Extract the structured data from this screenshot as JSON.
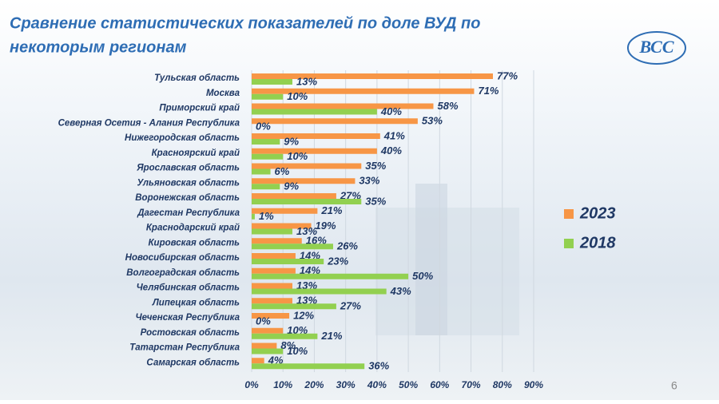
{
  "chart_data": {
    "type": "hbar",
    "title": [
      "Сравнение статистических показателей по доле ВУД по",
      "некоторым регионам"
    ],
    "logo": "ВСС",
    "page_number": "6",
    "categories": [
      "Тульская область",
      "Москва",
      "Приморский край",
      "Северная Осетия - Алания Республика",
      "Нижегородская область",
      "Красноярский край",
      "Ярославская область",
      "Ульяновская область",
      "Воронежская область",
      "Дагестан Республика",
      "Краснодарский край",
      "Кировская область",
      "Новосибирская область",
      "Волгоградская область",
      "Челябинская область",
      "Липецкая область",
      "Чеченская Республика",
      "Ростовская область",
      "Татарстан Республика",
      "Самарская область"
    ],
    "series": [
      {
        "name": "2023",
        "color": "#f79646",
        "values": [
          77,
          71,
          58,
          53,
          41,
          40,
          35,
          33,
          27,
          21,
          19,
          16,
          14,
          14,
          13,
          13,
          12,
          10,
          8,
          4
        ],
        "value_labels": [
          "77%",
          "71%",
          "58%",
          "53%",
          "41%",
          "40%",
          "35%",
          "33%",
          "27%",
          "21%",
          "19%",
          "16%",
          "14%",
          "14%",
          "13%",
          "13%",
          "12%",
          "10%",
          "8%",
          "4%"
        ]
      },
      {
        "name": "2018",
        "color": "#92d050",
        "values": [
          13,
          10,
          40,
          0,
          9,
          10,
          6,
          9,
          35,
          1,
          13,
          26,
          23,
          50,
          43,
          27,
          0,
          21,
          10,
          36
        ],
        "value_labels": [
          "13%",
          "10%",
          "40%",
          "0%",
          "9%",
          "10%",
          "6%",
          "9%",
          "35%",
          "1%",
          "13%",
          "26%",
          "23%",
          "50%",
          "43%",
          "27%",
          "0%",
          "21%",
          "10%",
          "36%"
        ]
      }
    ],
    "xlim": [
      0,
      90
    ],
    "xticks": [
      {
        "value": 0,
        "label": "0%"
      },
      {
        "value": 10,
        "label": "10%"
      },
      {
        "value": 20,
        "label": "20%"
      },
      {
        "value": 30,
        "label": "30%"
      },
      {
        "value": 40,
        "label": "40%"
      },
      {
        "value": 50,
        "label": "50%"
      },
      {
        "value": 60,
        "label": "60%"
      },
      {
        "value": 70,
        "label": "70%"
      },
      {
        "value": 80,
        "label": "80%"
      },
      {
        "value": 90,
        "label": "90%"
      }
    ],
    "grid": true
  }
}
